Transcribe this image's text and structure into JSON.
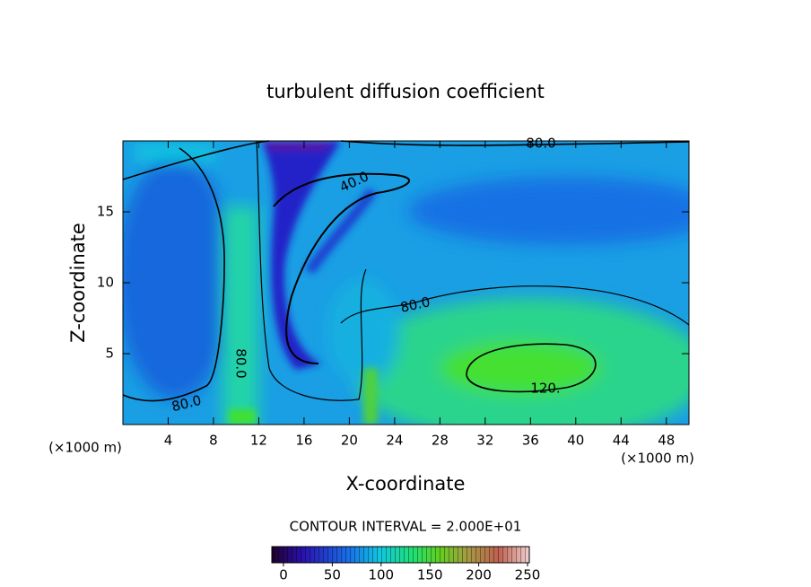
{
  "chart_data": {
    "type": "contour",
    "title": "turbulent diffusion coefficient",
    "x_label": "X-coordinate",
    "y_label": "Z-coordinate",
    "x_unit": "(×1000 m)",
    "y_unit": "(×1000 m)",
    "xlim": [
      0,
      50
    ],
    "xticks": [
      4,
      8,
      12,
      16,
      20,
      24,
      28,
      32,
      36,
      40,
      44,
      48
    ],
    "ylim": [
      0,
      20
    ],
    "yticks": [
      5,
      10,
      15
    ],
    "contour_interval_text": "CONTOUR INTERVAL = 2.000E+01",
    "contour_labels": [
      {
        "value": 80,
        "label": "80.0"
      },
      {
        "value": 40,
        "label": "40.0"
      },
      {
        "value": 80,
        "label": "80.0"
      },
      {
        "value": 120,
        "label": "120."
      },
      {
        "value": 80,
        "label": "80.0"
      },
      {
        "value": 80,
        "label": "80.0"
      }
    ],
    "colorbar": {
      "lim": [
        0,
        250
      ],
      "ticks": [
        0,
        50,
        100,
        150,
        200,
        250
      ]
    }
  }
}
